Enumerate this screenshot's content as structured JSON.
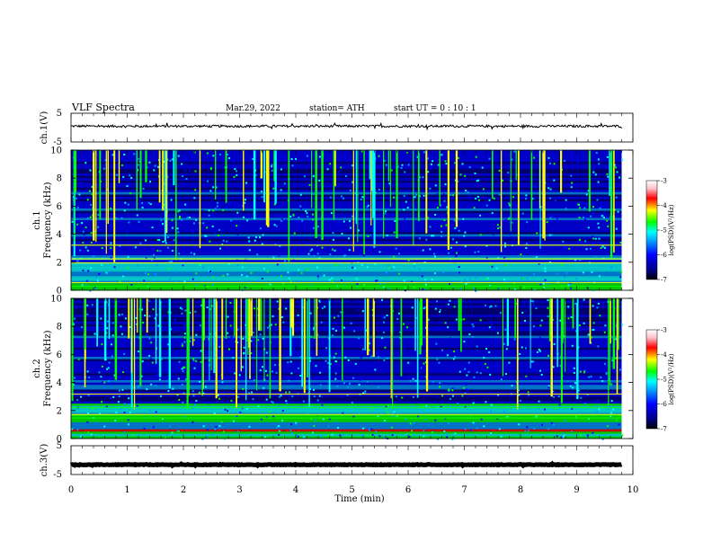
{
  "header": {
    "title": "VLF  Spectra",
    "date": "Mar.29, 2022",
    "station": "station= ATH",
    "start_ut": "start  UT  =   0  : 10 : 1"
  },
  "colors": {
    "trace": "#000000",
    "background": "#ffffff",
    "spectrogram_floor": "#000000",
    "colorscale": [
      "#000000",
      "#00008b",
      "#0000ff",
      "#0096ff",
      "#00ffff",
      "#00ff00",
      "#ffff00",
      "#ff0000",
      "#ffc0cb",
      "#ffffff"
    ]
  },
  "chart_data": [
    {
      "type": "line",
      "name": "ch1-waveform",
      "ylabel": "ch.1(V)",
      "xlim": [
        0,
        10
      ],
      "ylim": [
        -5,
        5
      ],
      "yticks": [
        "5",
        "-5"
      ],
      "baseline_v": 0.5,
      "amplitude_v": 0.4,
      "data_end_min": 9.8
    },
    {
      "type": "heatmap",
      "name": "ch1-spectrogram",
      "ylabel_top": "ch.1",
      "ylabel": "Frequency  (kHz)",
      "xlim": [
        0,
        10
      ],
      "ylim": [
        0,
        10
      ],
      "yticks": [
        "0",
        "2",
        "4",
        "6",
        "8",
        "10"
      ],
      "data_end_min": 9.8,
      "colorbar": {
        "label": "log(PSD)(V²/Hz)",
        "range": [
          -7,
          -3
        ],
        "ticks": [
          "-3",
          "-4",
          "-5",
          "-6",
          "-7"
        ]
      }
    },
    {
      "type": "heatmap",
      "name": "ch2-spectrogram",
      "ylabel_top": "ch.2",
      "ylabel": "Frequency  (kHz)",
      "xlim": [
        0,
        10
      ],
      "ylim": [
        0,
        10
      ],
      "yticks": [
        "0",
        "2",
        "4",
        "6",
        "8",
        "10"
      ],
      "data_end_min": 9.8,
      "colorbar": {
        "label": "log(PSD)(V²/Hz)",
        "range": [
          -7,
          -3
        ],
        "ticks": [
          "-3",
          "-4",
          "-5",
          "-6",
          "-7"
        ]
      }
    },
    {
      "type": "line",
      "name": "ch3-waveform",
      "ylabel": "ch.3(V)",
      "xlim": [
        0,
        10
      ],
      "ylim": [
        -5,
        5
      ],
      "yticks": [
        "5",
        "-5"
      ],
      "baseline_v": -1.6,
      "amplitude_v": 0.1,
      "data_end_min": 9.8
    }
  ],
  "x_axis": {
    "label": "Time  (min)",
    "ticks": [
      "0",
      "1",
      "2",
      "3",
      "4",
      "5",
      "6",
      "7",
      "8",
      "9",
      "10"
    ]
  }
}
